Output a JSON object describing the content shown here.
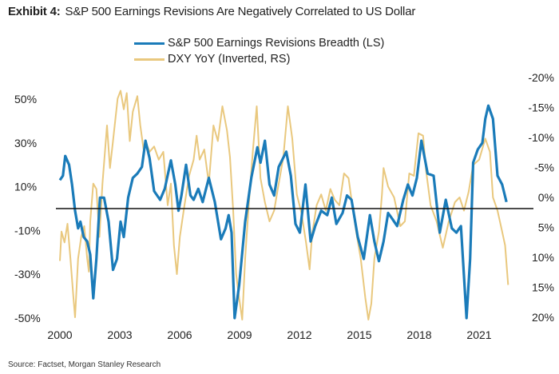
{
  "title": {
    "label": "Exhibit 4:",
    "text": "S&P 500 Earnings Revisions Are Negatively Correlated to US Dollar"
  },
  "source": "Source: Factset, Morgan Stanley Research",
  "chart_data": {
    "type": "line",
    "title": "S&P 500 Earnings Revisions Are Negatively Correlated to US Dollar",
    "xlabel": "",
    "ylabel": "",
    "x_ticks": [
      "2000",
      "2003",
      "2006",
      "2009",
      "2012",
      "2015",
      "2018",
      "2021"
    ],
    "xlim": [
      2000,
      2022.6
    ],
    "left_axis": {
      "ylim": [
        -50,
        50
      ],
      "ticks": [
        50,
        30,
        10,
        -10,
        -30,
        -50
      ],
      "tick_labels": [
        "50%",
        "30%",
        "10%",
        "-10%",
        "-30%",
        "-50%"
      ]
    },
    "right_axis": {
      "ylim": [
        -20,
        20
      ],
      "inverted": true,
      "ticks": [
        -20,
        -15,
        -10,
        -5,
        0,
        5,
        10,
        15,
        20
      ],
      "tick_labels": [
        "-20%",
        "-15%",
        "-10%",
        "-5%",
        "0%",
        "5%",
        "10%",
        "15%",
        "20%"
      ]
    },
    "reference_line": {
      "axis": "left",
      "value": 0,
      "color": "#111111"
    },
    "grid": false,
    "legend": "top-center",
    "series": [
      {
        "name": "S&P 500 Earnings Revisions Breadth (LS)",
        "axis": "left",
        "color": "#1a7bb9",
        "points": [
          [
            2000.0,
            13
          ],
          [
            2000.15,
            15
          ],
          [
            2000.27,
            24
          ],
          [
            2000.46,
            20
          ],
          [
            2000.61,
            11
          ],
          [
            2000.76,
            -1
          ],
          [
            2000.91,
            -9
          ],
          [
            2001.03,
            -6
          ],
          [
            2001.19,
            -13
          ],
          [
            2001.37,
            -15
          ],
          [
            2001.52,
            -21
          ],
          [
            2001.67,
            -41
          ],
          [
            2001.83,
            -23
          ],
          [
            2002.01,
            5
          ],
          [
            2002.21,
            5
          ],
          [
            2002.44,
            -6
          ],
          [
            2002.66,
            -28
          ],
          [
            2002.86,
            -23
          ],
          [
            2003.04,
            -6
          ],
          [
            2003.2,
            -13
          ],
          [
            2003.42,
            5
          ],
          [
            2003.65,
            14
          ],
          [
            2003.88,
            16
          ],
          [
            2004.11,
            19
          ],
          [
            2004.29,
            31
          ],
          [
            2004.49,
            23
          ],
          [
            2004.72,
            8
          ],
          [
            2005.02,
            4
          ],
          [
            2005.25,
            9
          ],
          [
            2005.56,
            22
          ],
          [
            2005.78,
            11
          ],
          [
            2005.94,
            -1
          ],
          [
            2006.09,
            6
          ],
          [
            2006.32,
            20
          ],
          [
            2006.54,
            6
          ],
          [
            2006.7,
            4
          ],
          [
            2006.93,
            9
          ],
          [
            2007.15,
            3
          ],
          [
            2007.46,
            14
          ],
          [
            2007.76,
            3
          ],
          [
            2008.07,
            -14
          ],
          [
            2008.3,
            -9
          ],
          [
            2008.45,
            -3
          ],
          [
            2008.6,
            -11
          ],
          [
            2008.75,
            -50
          ],
          [
            2008.98,
            -35
          ],
          [
            2009.28,
            -6
          ],
          [
            2009.59,
            14
          ],
          [
            2009.89,
            28
          ],
          [
            2010.05,
            21
          ],
          [
            2010.27,
            31
          ],
          [
            2010.5,
            11
          ],
          [
            2010.73,
            6
          ],
          [
            2010.96,
            19
          ],
          [
            2011.34,
            26
          ],
          [
            2011.57,
            15
          ],
          [
            2011.8,
            -7
          ],
          [
            2012.02,
            -11
          ],
          [
            2012.3,
            11
          ],
          [
            2012.56,
            -15
          ],
          [
            2012.79,
            -8
          ],
          [
            2013.09,
            -1
          ],
          [
            2013.39,
            -3
          ],
          [
            2013.62,
            5
          ],
          [
            2013.85,
            -7
          ],
          [
            2014.16,
            -2
          ],
          [
            2014.38,
            6
          ],
          [
            2014.61,
            4
          ],
          [
            2014.92,
            -13
          ],
          [
            2015.22,
            -23
          ],
          [
            2015.53,
            -3
          ],
          [
            2015.75,
            -15
          ],
          [
            2015.98,
            -24
          ],
          [
            2016.21,
            -15
          ],
          [
            2016.44,
            -2
          ],
          [
            2016.67,
            -5
          ],
          [
            2016.89,
            -8
          ],
          [
            2017.2,
            4
          ],
          [
            2017.43,
            11
          ],
          [
            2017.66,
            6
          ],
          [
            2017.88,
            14
          ],
          [
            2018.11,
            31
          ],
          [
            2018.42,
            16
          ],
          [
            2018.72,
            15
          ],
          [
            2019.03,
            -11
          ],
          [
            2019.33,
            4
          ],
          [
            2019.63,
            -9
          ],
          [
            2019.86,
            -11
          ],
          [
            2020.09,
            -8
          ],
          [
            2020.37,
            -50
          ],
          [
            2020.55,
            -23
          ],
          [
            2020.7,
            21
          ],
          [
            2020.93,
            27
          ],
          [
            2021.16,
            30
          ],
          [
            2021.31,
            41
          ],
          [
            2021.46,
            47
          ],
          [
            2021.69,
            41
          ],
          [
            2021.92,
            15
          ],
          [
            2022.15,
            11
          ],
          [
            2022.37,
            3
          ]
        ]
      },
      {
        "name": "DXY YoY (Inverted, RS)",
        "axis": "right",
        "color": "#e9c87e",
        "points": [
          [
            2000.0,
            10.6
          ],
          [
            2000.08,
            5.7
          ],
          [
            2000.23,
            7.5
          ],
          [
            2000.38,
            4.4
          ],
          [
            2000.53,
            10.2
          ],
          [
            2000.68,
            16.8
          ],
          [
            2000.76,
            20
          ],
          [
            2000.91,
            10.2
          ],
          [
            2001.07,
            6.6
          ],
          [
            2001.22,
            4.8
          ],
          [
            2001.37,
            10.2
          ],
          [
            2001.45,
            12.4
          ],
          [
            2001.52,
            4
          ],
          [
            2001.67,
            -2.3
          ],
          [
            2001.83,
            -1.4
          ],
          [
            2001.98,
            6.6
          ],
          [
            2002.13,
            -2.3
          ],
          [
            2002.36,
            -12
          ],
          [
            2002.51,
            -4.9
          ],
          [
            2002.66,
            -9.4
          ],
          [
            2002.89,
            -16.5
          ],
          [
            2003.04,
            -17.8
          ],
          [
            2003.2,
            -14.7
          ],
          [
            2003.35,
            -17.4
          ],
          [
            2003.5,
            -9.4
          ],
          [
            2003.65,
            -14.3
          ],
          [
            2003.88,
            -16.9
          ],
          [
            2004.03,
            -12
          ],
          [
            2004.19,
            -8
          ],
          [
            2004.34,
            -8.9
          ],
          [
            2004.49,
            -7.6
          ],
          [
            2004.72,
            -8.5
          ],
          [
            2004.95,
            -6.3
          ],
          [
            2005.18,
            -7.6
          ],
          [
            2005.4,
            1.3
          ],
          [
            2005.56,
            -2.3
          ],
          [
            2005.71,
            8
          ],
          [
            2005.86,
            12.8
          ],
          [
            2006.01,
            6.6
          ],
          [
            2006.24,
            1.3
          ],
          [
            2006.47,
            -3.6
          ],
          [
            2006.7,
            -6.3
          ],
          [
            2006.85,
            -10.3
          ],
          [
            2007.0,
            -6.3
          ],
          [
            2007.23,
            -8
          ],
          [
            2007.46,
            -2.3
          ],
          [
            2007.69,
            -12
          ],
          [
            2007.91,
            -9.4
          ],
          [
            2008.14,
            -15.2
          ],
          [
            2008.37,
            -11.2
          ],
          [
            2008.52,
            -6.7
          ],
          [
            2008.68,
            2.2
          ],
          [
            2008.83,
            12.8
          ],
          [
            2008.98,
            16.8
          ],
          [
            2009.13,
            20.4
          ],
          [
            2009.28,
            10.2
          ],
          [
            2009.44,
            2.2
          ],
          [
            2009.67,
            -8
          ],
          [
            2009.86,
            -15.2
          ],
          [
            2010.05,
            -3.2
          ],
          [
            2010.27,
            0.8
          ],
          [
            2010.5,
            4
          ],
          [
            2010.73,
            2.2
          ],
          [
            2010.96,
            -2.3
          ],
          [
            2011.19,
            -6.7
          ],
          [
            2011.42,
            -15.2
          ],
          [
            2011.64,
            -9.8
          ],
          [
            2011.87,
            -0.5
          ],
          [
            2012.1,
            2.6
          ],
          [
            2012.33,
            7.5
          ],
          [
            2012.51,
            12
          ],
          [
            2012.63,
            6.2
          ],
          [
            2012.86,
            1.3
          ],
          [
            2013.09,
            -0.5
          ],
          [
            2013.32,
            2.2
          ],
          [
            2013.55,
            -1.4
          ],
          [
            2013.77,
            0.4
          ],
          [
            2014.0,
            1.3
          ],
          [
            2014.23,
            -4
          ],
          [
            2014.46,
            -3.2
          ],
          [
            2014.61,
            0.4
          ],
          [
            2014.84,
            5.7
          ],
          [
            2015.07,
            10.2
          ],
          [
            2015.3,
            16.8
          ],
          [
            2015.45,
            20.4
          ],
          [
            2015.6,
            17.7
          ],
          [
            2015.75,
            10.2
          ],
          [
            2015.98,
            5.7
          ],
          [
            2016.13,
            -0.5
          ],
          [
            2016.21,
            -4.9
          ],
          [
            2016.44,
            -1.8
          ],
          [
            2016.74,
            0
          ],
          [
            2017.05,
            4.8
          ],
          [
            2017.28,
            4
          ],
          [
            2017.5,
            -4
          ],
          [
            2017.73,
            -3.6
          ],
          [
            2017.96,
            -10.7
          ],
          [
            2018.19,
            -10.3
          ],
          [
            2018.34,
            -4.5
          ],
          [
            2018.57,
            1.3
          ],
          [
            2018.87,
            4
          ],
          [
            2019.18,
            8.4
          ],
          [
            2019.48,
            4
          ],
          [
            2019.79,
            0.8
          ],
          [
            2020.02,
            0
          ],
          [
            2020.24,
            2.2
          ],
          [
            2020.47,
            -0.9
          ],
          [
            2020.7,
            -5.4
          ],
          [
            2021.0,
            -6.3
          ],
          [
            2021.31,
            -9.8
          ],
          [
            2021.54,
            -7.6
          ],
          [
            2021.69,
            0
          ],
          [
            2021.92,
            2.2
          ],
          [
            2022.15,
            5.7
          ],
          [
            2022.3,
            8
          ],
          [
            2022.45,
            14.6
          ]
        ]
      }
    ]
  }
}
